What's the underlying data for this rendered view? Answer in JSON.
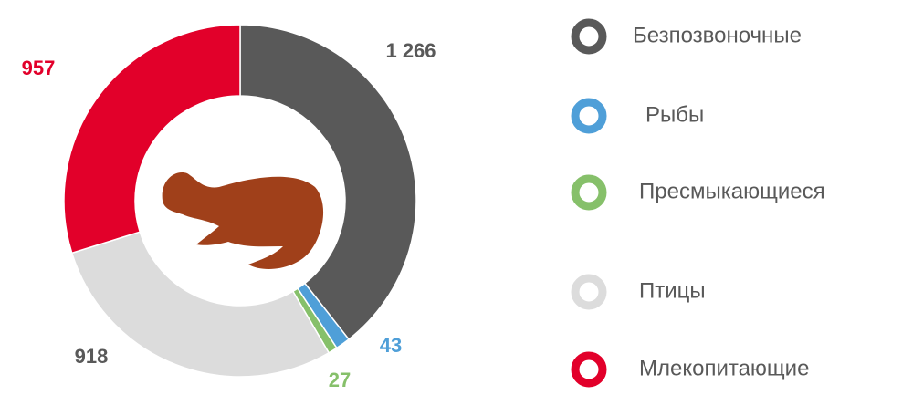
{
  "chart_data": {
    "type": "donut",
    "categories": [
      "Безпозвоночные",
      "Рыбы",
      "Пресмыкающиеся",
      "Птицы",
      "Млекопитающие"
    ],
    "values": [
      1266,
      43,
      27,
      918,
      957
    ],
    "value_labels": [
      "1 266",
      "43",
      "27",
      "918",
      "957"
    ],
    "colors": [
      "#595959",
      "#4f9fd8",
      "#86c06a",
      "#dcdcdc",
      "#e2002a"
    ]
  }
}
